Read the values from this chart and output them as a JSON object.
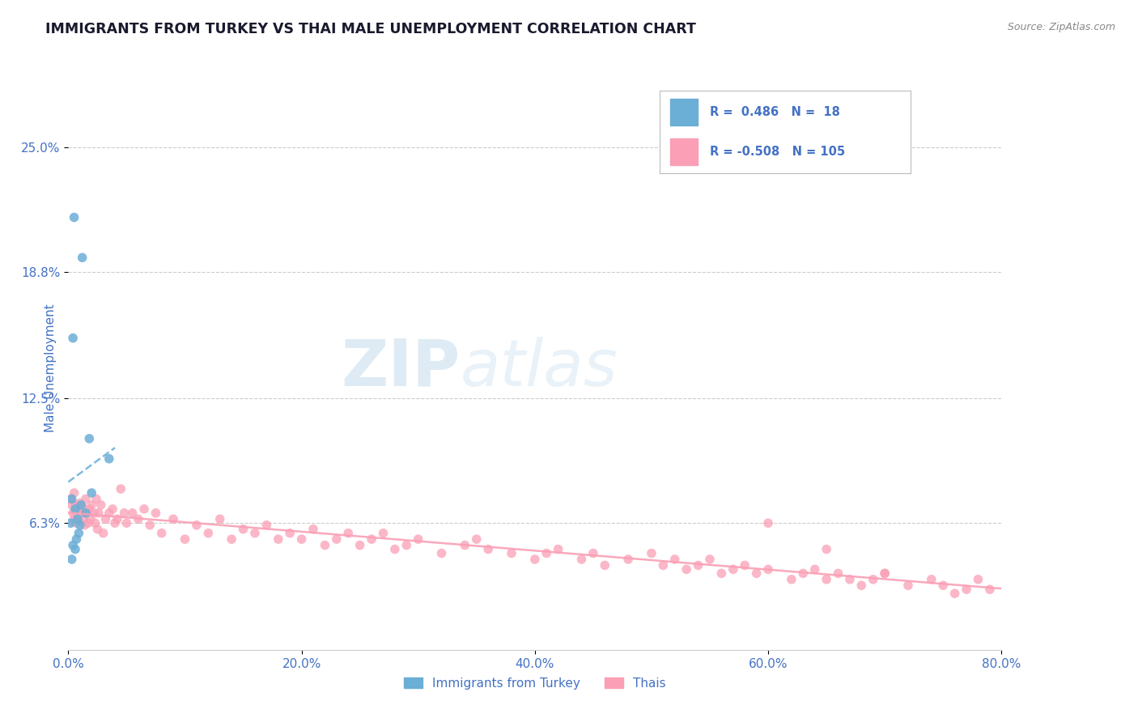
{
  "title": "IMMIGRANTS FROM TURKEY VS THAI MALE UNEMPLOYMENT CORRELATION CHART",
  "source": "Source: ZipAtlas.com",
  "xlabel_ticks": [
    "0.0%",
    "20.0%",
    "40.0%",
    "60.0%",
    "80.0%"
  ],
  "xlabel_vals": [
    0.0,
    20.0,
    40.0,
    60.0,
    80.0
  ],
  "ylabel_ticks": [
    "6.3%",
    "12.5%",
    "18.8%",
    "25.0%"
  ],
  "ylabel_vals": [
    6.3,
    12.5,
    18.8,
    25.0
  ],
  "ylabel_label": "Male Unemployment",
  "xlim": [
    0.0,
    80.0
  ],
  "ylim": [
    0.0,
    28.0
  ],
  "blue_color": "#6baed6",
  "pink_color": "#fa9fb5",
  "blue_label": "Immigrants from Turkey",
  "pink_label": "Thais",
  "blue_R": 0.486,
  "blue_N": 18,
  "pink_R": -0.508,
  "pink_N": 105,
  "legend_color": "#4472c4",
  "axis_label_color": "#4472c4",
  "tick_label_color": "#4472c4",
  "blue_scatter_x": [
    0.5,
    1.2,
    1.8,
    0.4,
    0.3,
    0.6,
    0.8,
    1.0,
    1.5,
    3.5,
    0.2,
    0.7,
    1.1,
    0.9,
    2.0,
    0.4,
    0.6,
    0.3
  ],
  "blue_scatter_y": [
    21.5,
    19.5,
    10.5,
    15.5,
    7.5,
    7.0,
    6.5,
    6.2,
    6.8,
    9.5,
    6.3,
    5.5,
    7.2,
    5.8,
    7.8,
    5.2,
    5.0,
    4.5
  ],
  "pink_scatter_x": [
    0.2,
    0.3,
    0.4,
    0.5,
    0.5,
    0.6,
    0.7,
    0.8,
    0.9,
    1.0,
    1.1,
    1.2,
    1.3,
    1.4,
    1.5,
    1.6,
    1.7,
    1.8,
    1.9,
    2.0,
    2.2,
    2.3,
    2.4,
    2.5,
    2.6,
    2.8,
    3.0,
    3.2,
    3.5,
    3.8,
    4.0,
    4.2,
    4.5,
    4.8,
    5.0,
    5.5,
    6.0,
    6.5,
    7.0,
    7.5,
    8.0,
    9.0,
    10.0,
    11.0,
    12.0,
    13.0,
    14.0,
    15.0,
    16.0,
    17.0,
    18.0,
    19.0,
    20.0,
    21.0,
    22.0,
    23.0,
    24.0,
    25.0,
    26.0,
    27.0,
    28.0,
    29.0,
    30.0,
    32.0,
    34.0,
    35.0,
    36.0,
    38.0,
    40.0,
    41.0,
    42.0,
    44.0,
    45.0,
    46.0,
    48.0,
    50.0,
    51.0,
    52.0,
    53.0,
    54.0,
    55.0,
    56.0,
    57.0,
    58.0,
    59.0,
    60.0,
    62.0,
    63.0,
    64.0,
    65.0,
    66.0,
    67.0,
    68.0,
    69.0,
    70.0,
    72.0,
    74.0,
    75.0,
    76.0,
    77.0,
    78.0,
    79.0,
    60.0,
    65.0,
    70.0
  ],
  "pink_scatter_y": [
    7.5,
    7.2,
    6.8,
    6.5,
    7.8,
    7.2,
    6.3,
    6.5,
    7.0,
    7.3,
    6.8,
    7.1,
    6.5,
    6.2,
    7.5,
    6.8,
    6.3,
    7.0,
    6.5,
    7.2,
    6.8,
    6.3,
    7.5,
    6.0,
    6.8,
    7.2,
    5.8,
    6.5,
    6.8,
    7.0,
    6.3,
    6.5,
    8.0,
    6.8,
    6.3,
    6.8,
    6.5,
    7.0,
    6.2,
    6.8,
    5.8,
    6.5,
    5.5,
    6.2,
    5.8,
    6.5,
    5.5,
    6.0,
    5.8,
    6.2,
    5.5,
    5.8,
    5.5,
    6.0,
    5.2,
    5.5,
    5.8,
    5.2,
    5.5,
    5.8,
    5.0,
    5.2,
    5.5,
    4.8,
    5.2,
    5.5,
    5.0,
    4.8,
    4.5,
    4.8,
    5.0,
    4.5,
    4.8,
    4.2,
    4.5,
    4.8,
    4.2,
    4.5,
    4.0,
    4.2,
    4.5,
    3.8,
    4.0,
    4.2,
    3.8,
    4.0,
    3.5,
    3.8,
    4.0,
    3.5,
    3.8,
    3.5,
    3.2,
    3.5,
    3.8,
    3.2,
    3.5,
    3.2,
    2.8,
    3.0,
    3.5,
    3.0,
    6.3,
    5.0,
    3.8
  ]
}
